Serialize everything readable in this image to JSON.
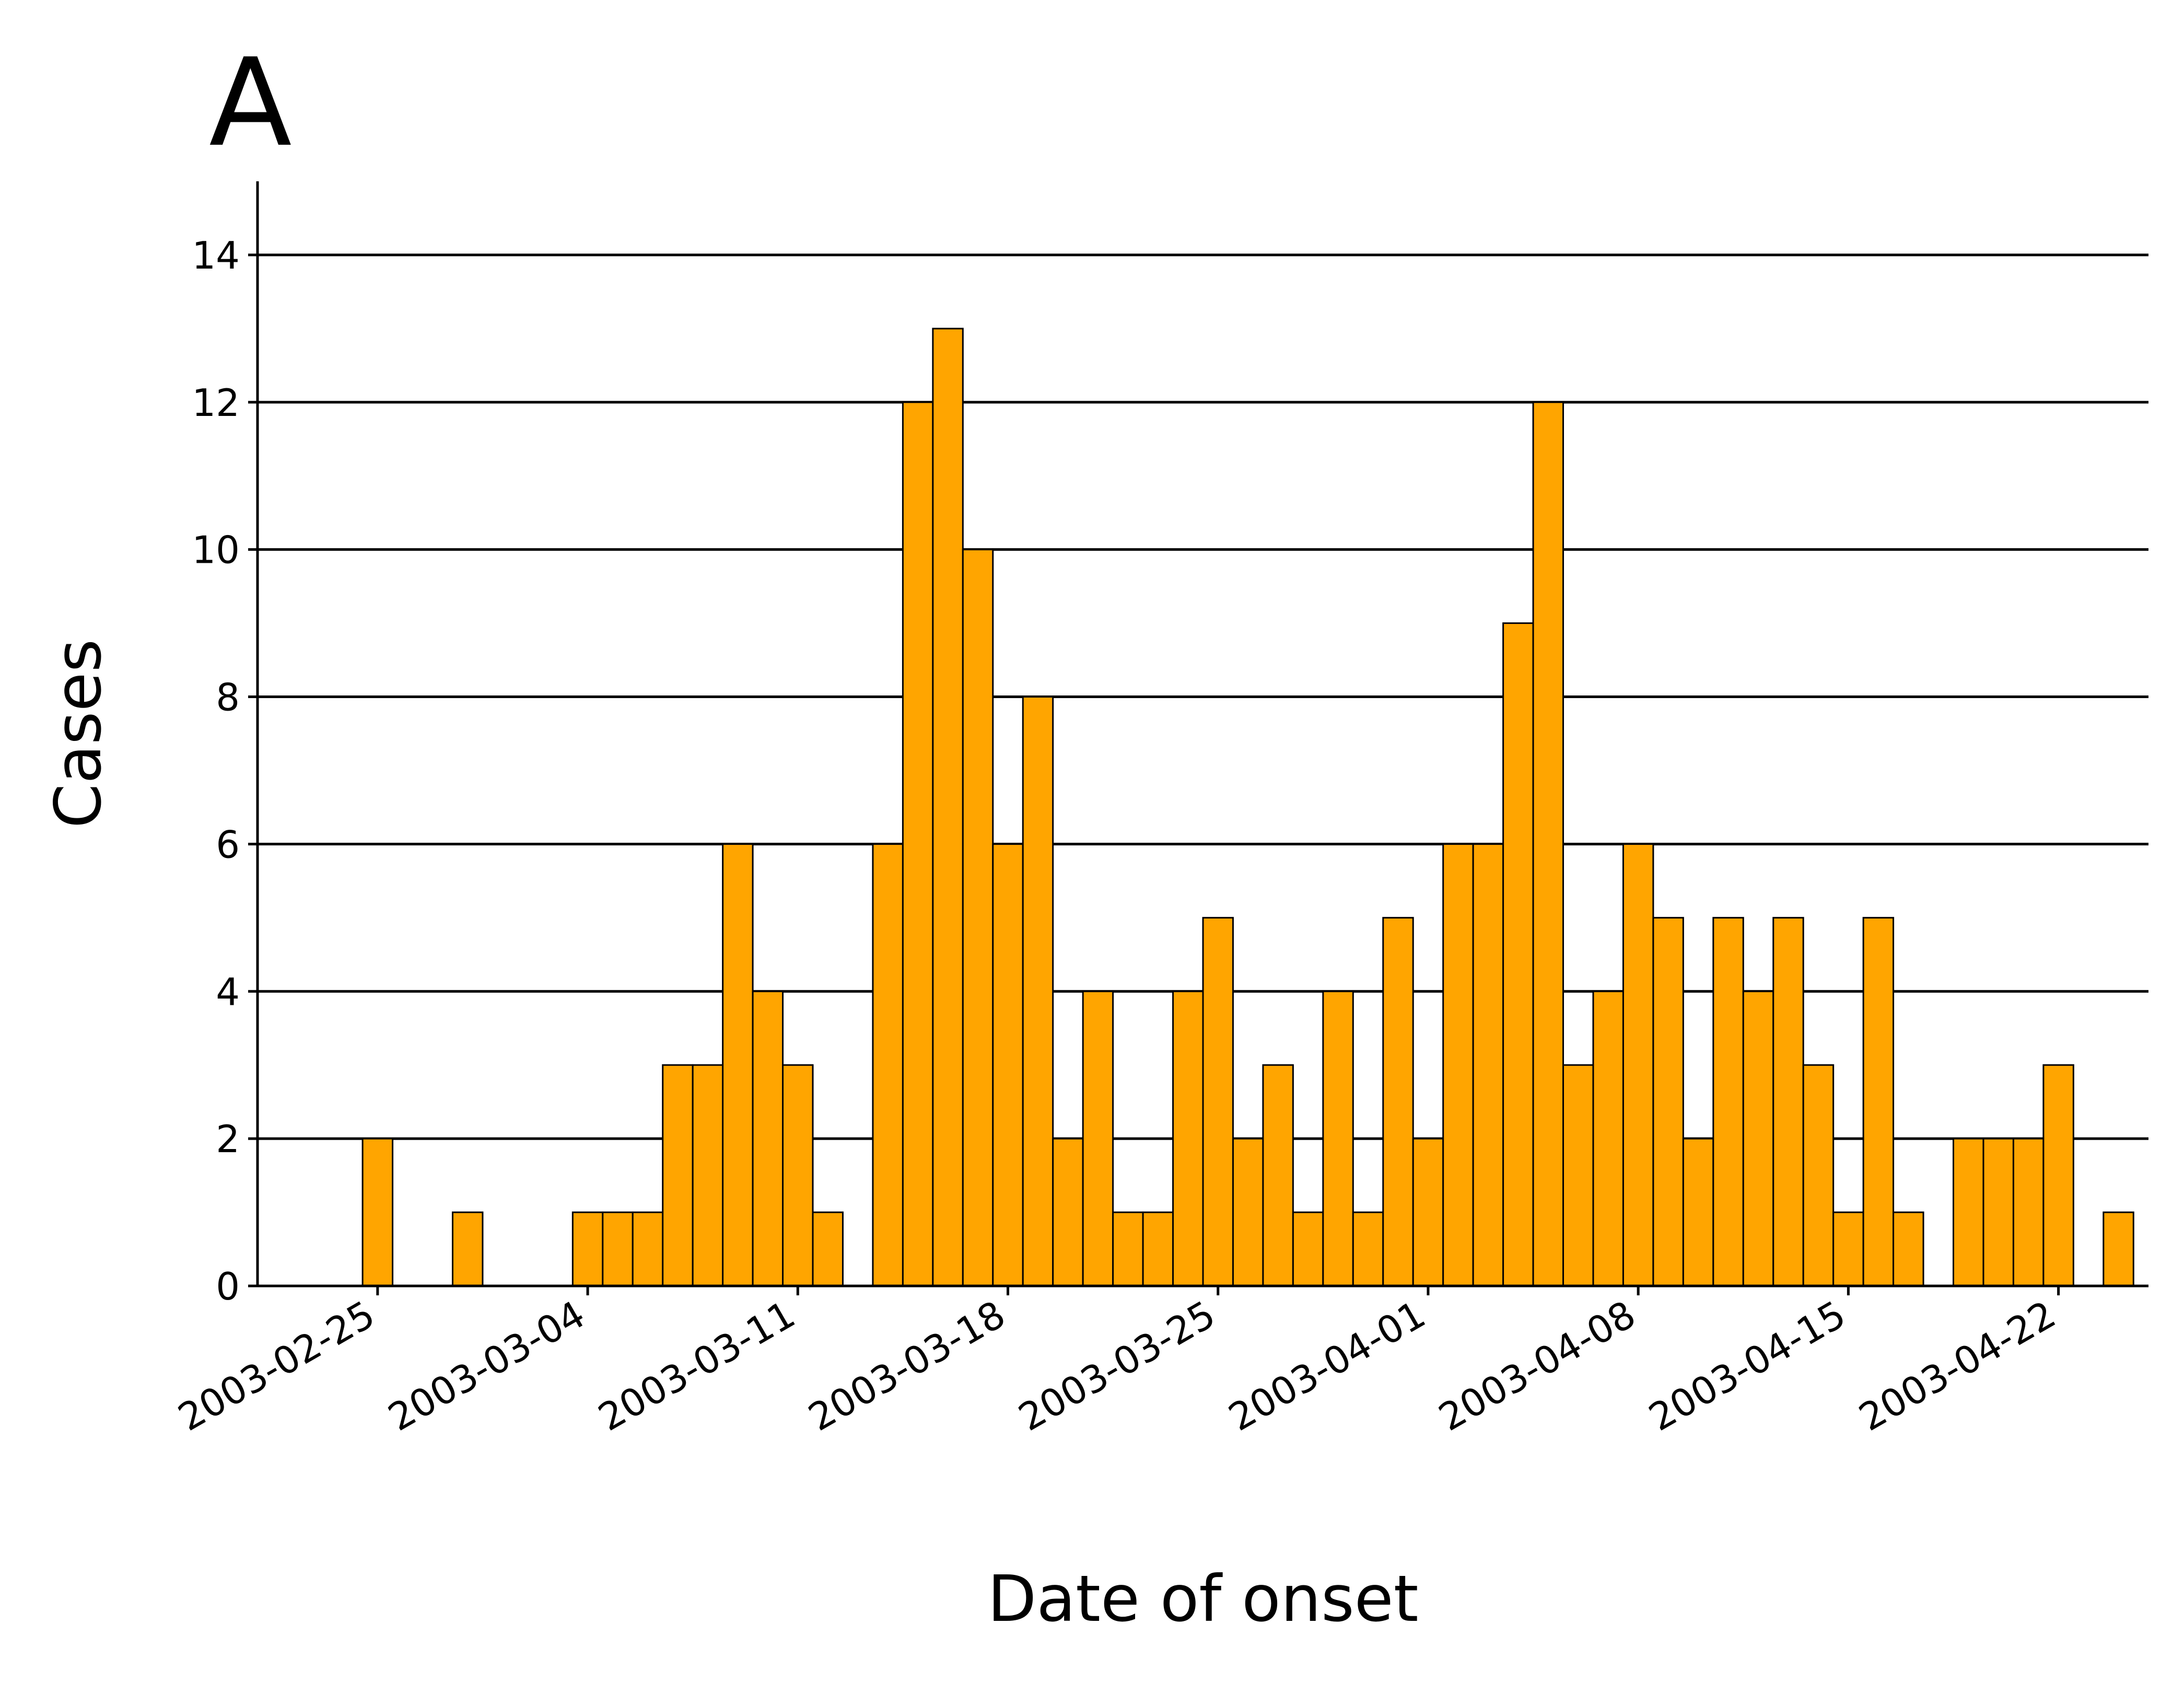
{
  "chart_data": {
    "type": "bar",
    "panel_label": "A",
    "xlabel": "Date of onset",
    "ylabel": "Cases",
    "ylim": [
      0,
      15
    ],
    "yticks": [
      0,
      2,
      4,
      6,
      8,
      10,
      12,
      14
    ],
    "xlim": [
      "2003-02-21",
      "2003-04-25"
    ],
    "xticks": [
      "2003-02-25",
      "2003-03-04",
      "2003-03-11",
      "2003-03-18",
      "2003-03-25",
      "2003-04-01",
      "2003-04-08",
      "2003-04-15",
      "2003-04-22"
    ],
    "grid": "horizontal",
    "bar_color": "#FFA500",
    "edge_color": "#000000",
    "x": [
      "2003-02-25",
      "2003-02-28",
      "2003-03-04",
      "2003-03-05",
      "2003-03-06",
      "2003-03-07",
      "2003-03-08",
      "2003-03-09",
      "2003-03-10",
      "2003-03-11",
      "2003-03-12",
      "2003-03-14",
      "2003-03-15",
      "2003-03-16",
      "2003-03-17",
      "2003-03-18",
      "2003-03-19",
      "2003-03-20",
      "2003-03-21",
      "2003-03-22",
      "2003-03-23",
      "2003-03-24",
      "2003-03-25",
      "2003-03-26",
      "2003-03-27",
      "2003-03-28",
      "2003-03-29",
      "2003-03-30",
      "2003-03-31",
      "2003-04-01",
      "2003-04-02",
      "2003-04-03",
      "2003-04-04",
      "2003-04-05",
      "2003-04-06",
      "2003-04-07",
      "2003-04-08",
      "2003-04-09",
      "2003-04-10",
      "2003-04-11",
      "2003-04-12",
      "2003-04-13",
      "2003-04-14",
      "2003-04-15",
      "2003-04-16",
      "2003-04-17",
      "2003-04-19",
      "2003-04-20",
      "2003-04-21",
      "2003-04-22",
      "2003-04-24"
    ],
    "values": [
      2,
      1,
      1,
      1,
      1,
      3,
      3,
      6,
      4,
      3,
      1,
      6,
      12,
      13,
      10,
      6,
      8,
      2,
      4,
      1,
      1,
      4,
      5,
      2,
      3,
      1,
      4,
      1,
      5,
      2,
      6,
      6,
      9,
      12,
      3,
      4,
      6,
      5,
      2,
      5,
      4,
      5,
      3,
      1,
      5,
      1,
      2,
      2,
      2,
      3,
      1
    ]
  }
}
